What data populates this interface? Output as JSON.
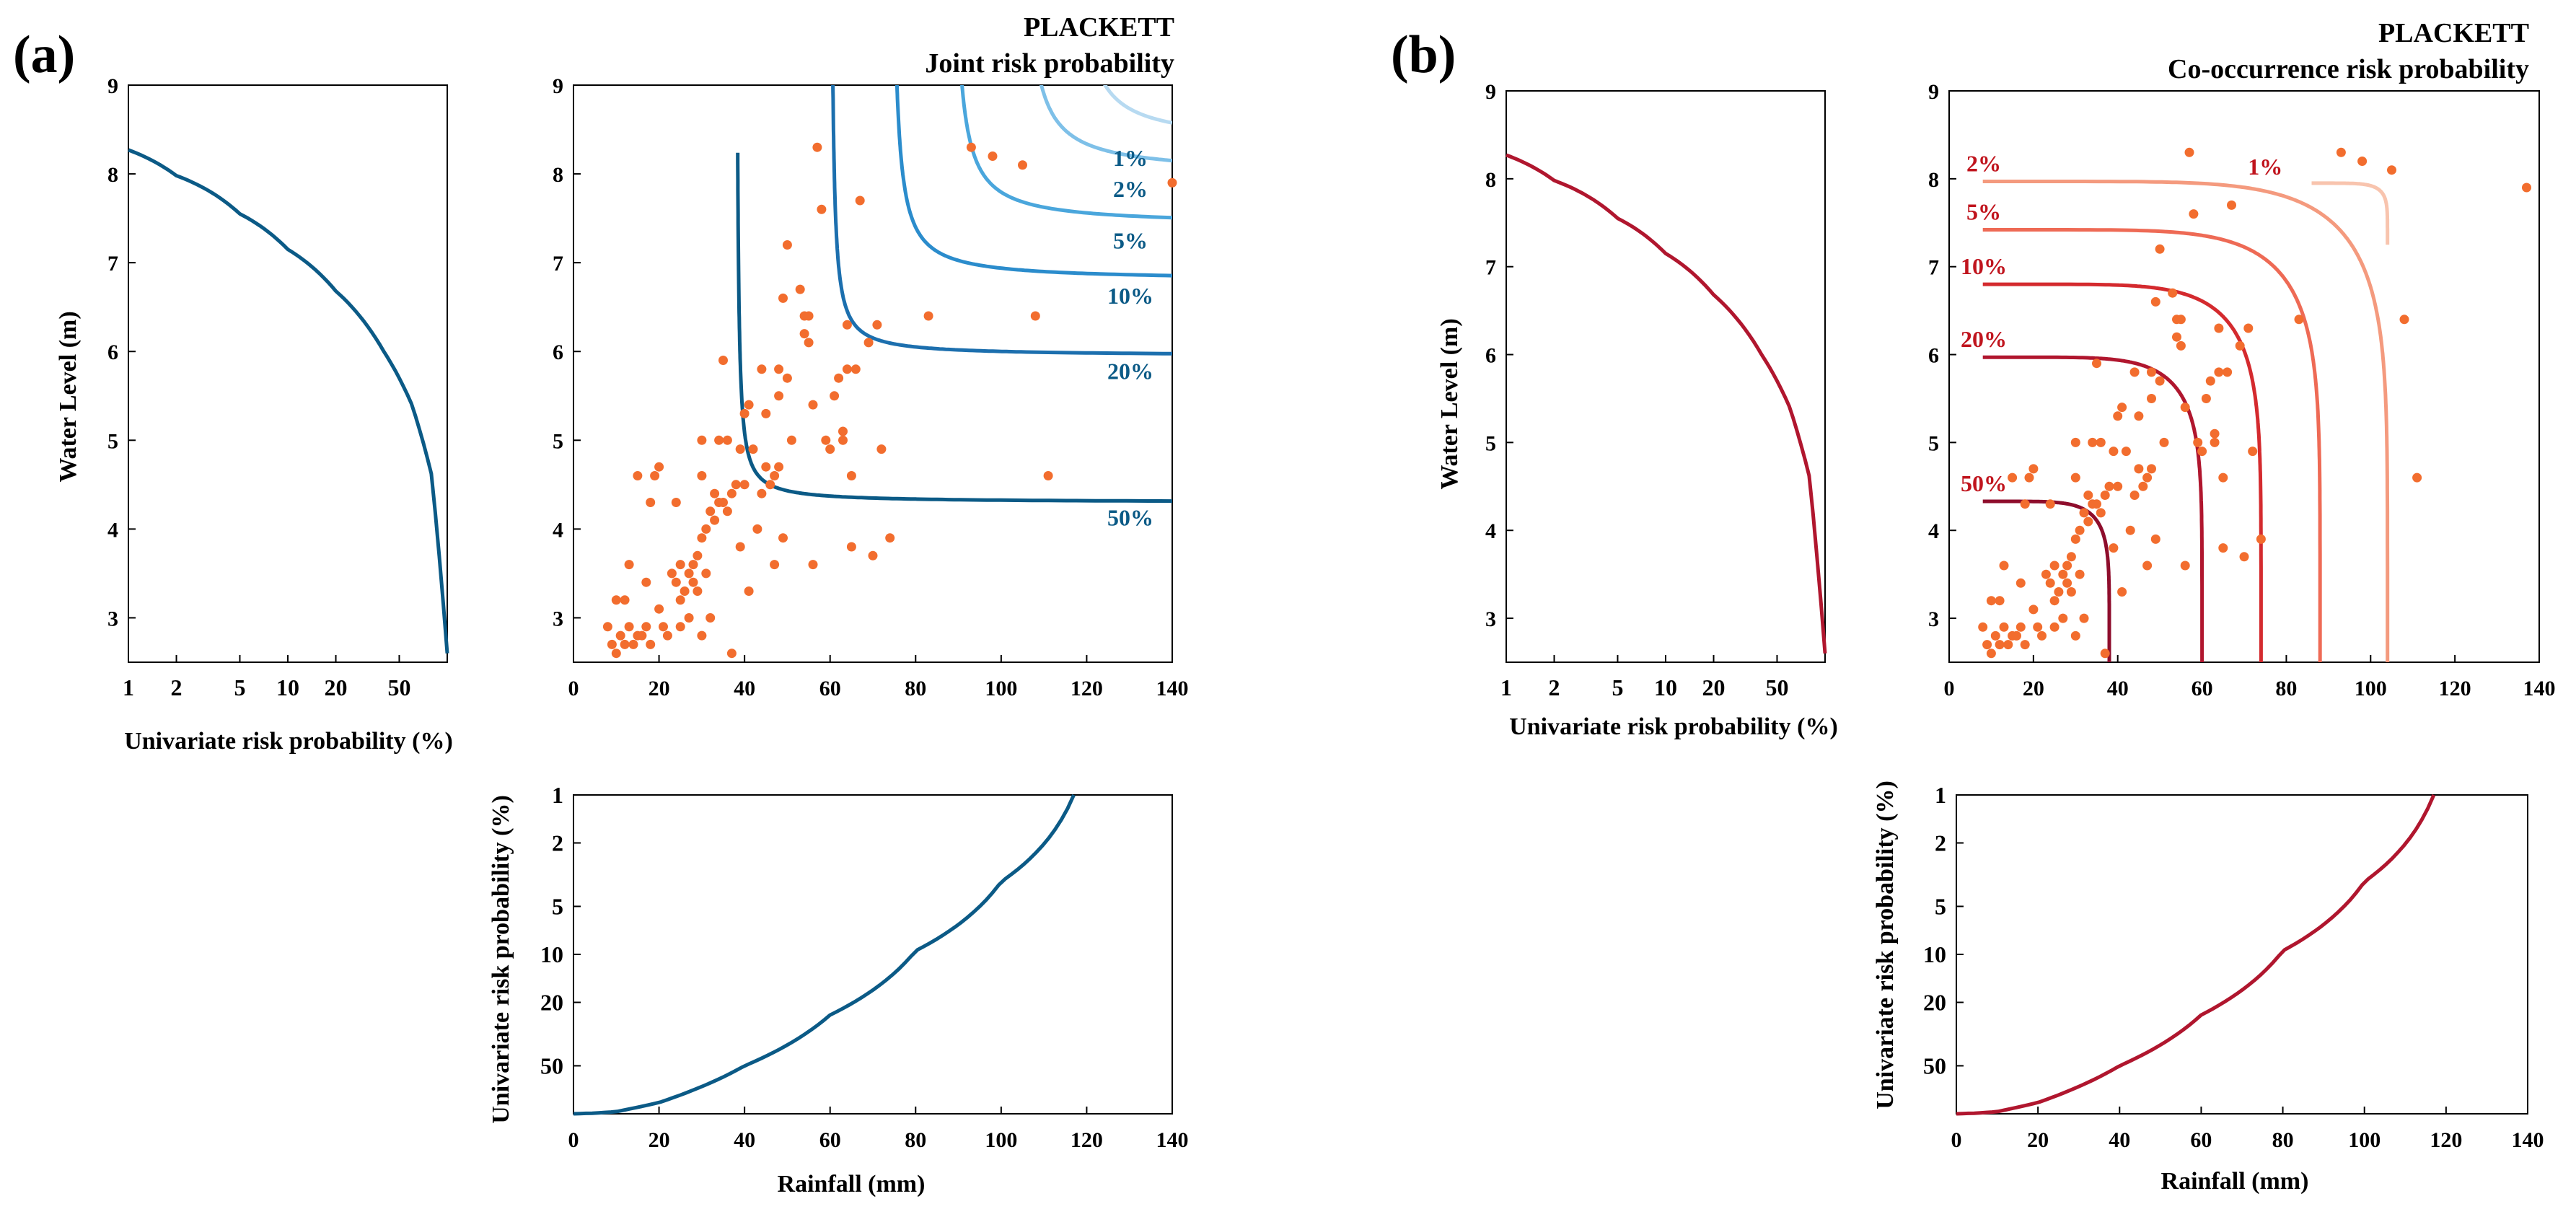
{
  "figure": {
    "panels": [
      {
        "label": "(a)",
        "copula": "PLACKETT",
        "main_title": "Joint risk probability",
        "contour_type": "joint",
        "curve_color": "#0b5a86",
        "contour_colors": [
          "#0b5a86",
          "#1c6fae",
          "#2b8ccc",
          "#4aa6dc",
          "#7ec0e8",
          "#b7daf1"
        ],
        "contour_label_color": "#0b5a86",
        "water_ylabel": "Water Level (m)",
        "prob_xlabel": "Univariate risk probability  (%)",
        "prob_ylabel": "Univariate risk probability (%)",
        "rain_xlabel": "Rainfall (mm)"
      },
      {
        "label": "(b)",
        "copula": "PLACKETT",
        "main_title": "Co-occurrence risk probability",
        "contour_type": "cooccurrence",
        "curve_color": "#b0162e",
        "contour_colors": [
          "#8e0d2c",
          "#b0162e",
          "#d42a2e",
          "#ee6a55",
          "#f49a7e",
          "#f8c4ae"
        ],
        "contour_label_color": "#c0141d",
        "water_ylabel": "Water Level (m)",
        "prob_xlabel": "Univariate risk probability (%)",
        "prob_ylabel": "Univariate risk probability (%)",
        "rain_xlabel": "Rainfall (mm)"
      }
    ]
  },
  "chart_data": [
    {
      "panel": "(a)",
      "type": "line",
      "name": "water-level-marginal",
      "xlabel": "Univariate risk probability  (%)",
      "ylabel": "Water Level (m)",
      "x_scale": "log-reversed",
      "x_ticks": [
        "1",
        "2",
        "5",
        "10",
        "20",
        "50"
      ],
      "y_ticks": [
        3,
        4,
        5,
        6,
        7,
        8,
        9
      ],
      "ylim": [
        2.5,
        9
      ],
      "x": [
        1,
        2,
        5,
        10,
        20,
        40,
        60,
        80,
        100
      ],
      "y": [
        8.27,
        7.98,
        7.55,
        7.15,
        6.68,
        6.0,
        5.4,
        4.6,
        2.6
      ]
    },
    {
      "panel": "(a)",
      "type": "scatter+contour",
      "name": "joint-risk",
      "title": "Joint risk probability",
      "xlim": [
        0,
        140
      ],
      "ylim": [
        2.5,
        9
      ],
      "x_ticks": [
        0,
        20,
        40,
        60,
        80,
        100,
        120,
        140
      ],
      "y_ticks": [
        3,
        4,
        5,
        6,
        7,
        8,
        9
      ],
      "scatter_color": "#f26d2e",
      "points": [
        [
          8,
          2.9
        ],
        [
          9,
          2.7
        ],
        [
          10,
          3.2
        ],
        [
          10,
          2.6
        ],
        [
          11,
          2.8
        ],
        [
          12,
          3.2
        ],
        [
          12,
          2.7
        ],
        [
          13,
          3.6
        ],
        [
          13,
          2.9
        ],
        [
          14,
          2.7
        ],
        [
          15,
          2.8
        ],
        [
          15,
          4.6
        ],
        [
          16,
          2.8
        ],
        [
          17,
          2.9
        ],
        [
          17,
          3.4
        ],
        [
          18,
          4.3
        ],
        [
          18,
          2.7
        ],
        [
          19,
          4.6
        ],
        [
          20,
          4.7
        ],
        [
          20,
          3.1
        ],
        [
          21,
          2.9
        ],
        [
          22,
          2.8
        ],
        [
          23,
          3.5
        ],
        [
          24,
          4.3
        ],
        [
          24,
          3.4
        ],
        [
          25,
          3.6
        ],
        [
          25,
          3.2
        ],
        [
          25,
          2.9
        ],
        [
          26,
          3.3
        ],
        [
          27,
          3.5
        ],
        [
          27,
          3.0
        ],
        [
          28,
          3.6
        ],
        [
          28,
          3.4
        ],
        [
          29,
          3.7
        ],
        [
          29,
          3.3
        ],
        [
          30,
          3.9
        ],
        [
          30,
          2.8
        ],
        [
          30,
          5.0
        ],
        [
          30,
          4.6
        ],
        [
          31,
          4.0
        ],
        [
          31,
          3.5
        ],
        [
          32,
          4.2
        ],
        [
          32,
          3.0
        ],
        [
          33,
          4.4
        ],
        [
          33,
          4.1
        ],
        [
          34,
          5.0
        ],
        [
          34,
          4.3
        ],
        [
          35,
          5.9
        ],
        [
          35,
          4.3
        ],
        [
          36,
          5.0
        ],
        [
          36,
          4.2
        ],
        [
          37,
          4.4
        ],
        [
          37,
          2.6
        ],
        [
          38,
          4.5
        ],
        [
          39,
          3.8
        ],
        [
          39,
          4.9
        ],
        [
          40,
          5.3
        ],
        [
          40,
          4.5
        ],
        [
          41,
          3.3
        ],
        [
          41,
          5.4
        ],
        [
          42,
          4.9
        ],
        [
          43,
          4.0
        ],
        [
          44,
          4.4
        ],
        [
          44,
          5.8
        ],
        [
          45,
          4.7
        ],
        [
          45,
          5.3
        ],
        [
          46,
          4.5
        ],
        [
          47,
          4.6
        ],
        [
          47,
          3.6
        ],
        [
          48,
          5.8
        ],
        [
          48,
          5.5
        ],
        [
          48,
          4.7
        ],
        [
          49,
          6.6
        ],
        [
          49,
          3.9
        ],
        [
          50,
          7.2
        ],
        [
          50,
          5.7
        ],
        [
          51,
          5.0
        ],
        [
          53,
          6.7
        ],
        [
          54,
          6.2
        ],
        [
          54,
          6.4
        ],
        [
          55,
          6.4
        ],
        [
          55,
          6.1
        ],
        [
          56,
          3.6
        ],
        [
          56,
          5.4
        ],
        [
          57,
          8.3
        ],
        [
          58,
          7.6
        ],
        [
          59,
          5.0
        ],
        [
          60,
          4.9
        ],
        [
          61,
          5.5
        ],
        [
          62,
          5.7
        ],
        [
          63,
          5.1
        ],
        [
          63,
          5.0
        ],
        [
          64,
          5.8
        ],
        [
          64,
          6.3
        ],
        [
          65,
          4.6
        ],
        [
          65,
          3.8
        ],
        [
          66,
          5.8
        ],
        [
          67,
          7.7
        ],
        [
          69,
          6.1
        ],
        [
          70,
          3.7
        ],
        [
          71,
          6.3
        ],
        [
          72,
          4.9
        ],
        [
          74,
          3.9
        ],
        [
          83,
          6.4
        ],
        [
          93,
          8.3
        ],
        [
          98,
          8.2
        ],
        [
          105,
          8.1
        ],
        [
          108,
          6.4
        ],
        [
          111,
          4.6
        ],
        [
          140,
          7.9
        ]
      ],
      "contour_labels": [
        "1%",
        "2%",
        "5%",
        "10%",
        "20%",
        "50%"
      ],
      "contours": [
        {
          "label": "50%",
          "x_asym": 38,
          "y_asym": 4.3,
          "k": 3.5
        },
        {
          "label": "20%",
          "x_asym": 60,
          "y_asym": 5.95,
          "k": 4.5
        },
        {
          "label": "10%",
          "x_asym": 74,
          "y_asym": 6.8,
          "k": 8.0
        },
        {
          "label": "5%",
          "x_asym": 88,
          "y_asym": 7.42,
          "k": 10.0
        },
        {
          "label": "2%",
          "x_asym": 104,
          "y_asym": 8.0,
          "k": 12.0
        },
        {
          "label": "1%",
          "x_asym": 116,
          "y_asym": 8.35,
          "k": 12.0
        }
      ]
    },
    {
      "panel": "(a)",
      "type": "line",
      "name": "rainfall-marginal",
      "xlabel": "Rainfall (mm)",
      "ylabel": "Univariate risk probability (%)",
      "y_scale": "log",
      "y_ticks": [
        "1",
        "2",
        "5",
        "10",
        "20",
        "50"
      ],
      "x_ticks": [
        0,
        20,
        40,
        60,
        80,
        100,
        120,
        140
      ],
      "xlim": [
        0,
        140
      ],
      "x": [
        0,
        5,
        10,
        20,
        40,
        60,
        80,
        100,
        117
      ],
      "y": [
        100,
        99,
        97,
        85,
        50,
        24,
        9.5,
        3.5,
        1
      ]
    },
    {
      "panel": "(b)",
      "type": "line",
      "name": "water-level-marginal",
      "xlabel": "Univariate risk probability (%)",
      "ylabel": "Water Level (m)",
      "x_scale": "log-reversed",
      "x_ticks": [
        "1",
        "2",
        "5",
        "10",
        "20",
        "50"
      ],
      "y_ticks": [
        3,
        4,
        5,
        6,
        7,
        8,
        9
      ],
      "ylim": [
        2.5,
        9
      ],
      "x": [
        1,
        2,
        5,
        10,
        20,
        40,
        60,
        80,
        100
      ],
      "y": [
        8.27,
        7.98,
        7.55,
        7.15,
        6.68,
        6.0,
        5.4,
        4.6,
        2.6
      ]
    },
    {
      "panel": "(b)",
      "type": "scatter+contour",
      "name": "cooccurrence-risk",
      "title": "Co-occurrence risk probability",
      "xlim": [
        0,
        140
      ],
      "ylim": [
        2.5,
        9
      ],
      "x_ticks": [
        0,
        20,
        40,
        60,
        80,
        100,
        120,
        140
      ],
      "y_ticks": [
        3,
        4,
        5,
        6,
        7,
        8,
        9
      ],
      "scatter_color": "#f26d2e",
      "points": [
        [
          8,
          2.9
        ],
        [
          9,
          2.7
        ],
        [
          10,
          3.2
        ],
        [
          10,
          2.6
        ],
        [
          11,
          2.8
        ],
        [
          12,
          3.2
        ],
        [
          12,
          2.7
        ],
        [
          13,
          3.6
        ],
        [
          13,
          2.9
        ],
        [
          14,
          2.7
        ],
        [
          15,
          2.8
        ],
        [
          15,
          4.6
        ],
        [
          16,
          2.8
        ],
        [
          17,
          2.9
        ],
        [
          17,
          3.4
        ],
        [
          18,
          4.3
        ],
        [
          18,
          2.7
        ],
        [
          19,
          4.6
        ],
        [
          20,
          4.7
        ],
        [
          20,
          3.1
        ],
        [
          21,
          2.9
        ],
        [
          22,
          2.8
        ],
        [
          23,
          3.5
        ],
        [
          24,
          4.3
        ],
        [
          24,
          3.4
        ],
        [
          25,
          3.6
        ],
        [
          25,
          3.2
        ],
        [
          25,
          2.9
        ],
        [
          26,
          3.3
        ],
        [
          27,
          3.5
        ],
        [
          27,
          3.0
        ],
        [
          28,
          3.6
        ],
        [
          28,
          3.4
        ],
        [
          29,
          3.7
        ],
        [
          29,
          3.3
        ],
        [
          30,
          3.9
        ],
        [
          30,
          2.8
        ],
        [
          30,
          5.0
        ],
        [
          30,
          4.6
        ],
        [
          31,
          4.0
        ],
        [
          31,
          3.5
        ],
        [
          32,
          4.2
        ],
        [
          32,
          3.0
        ],
        [
          33,
          4.4
        ],
        [
          33,
          4.1
        ],
        [
          34,
          5.0
        ],
        [
          34,
          4.3
        ],
        [
          35,
          5.9
        ],
        [
          35,
          4.3
        ],
        [
          36,
          5.0
        ],
        [
          36,
          4.2
        ],
        [
          37,
          4.4
        ],
        [
          37,
          2.6
        ],
        [
          38,
          4.5
        ],
        [
          39,
          3.8
        ],
        [
          39,
          4.9
        ],
        [
          40,
          5.3
        ],
        [
          40,
          4.5
        ],
        [
          41,
          3.3
        ],
        [
          41,
          5.4
        ],
        [
          42,
          4.9
        ],
        [
          43,
          4.0
        ],
        [
          44,
          4.4
        ],
        [
          44,
          5.8
        ],
        [
          45,
          4.7
        ],
        [
          45,
          5.3
        ],
        [
          46,
          4.5
        ],
        [
          47,
          4.6
        ],
        [
          47,
          3.6
        ],
        [
          48,
          5.8
        ],
        [
          48,
          5.5
        ],
        [
          48,
          4.7
        ],
        [
          49,
          6.6
        ],
        [
          49,
          3.9
        ],
        [
          50,
          7.2
        ],
        [
          50,
          5.7
        ],
        [
          51,
          5.0
        ],
        [
          53,
          6.7
        ],
        [
          54,
          6.2
        ],
        [
          54,
          6.4
        ],
        [
          55,
          6.4
        ],
        [
          55,
          6.1
        ],
        [
          56,
          3.6
        ],
        [
          56,
          5.4
        ],
        [
          57,
          8.3
        ],
        [
          58,
          7.6
        ],
        [
          59,
          5.0
        ],
        [
          60,
          4.9
        ],
        [
          61,
          5.5
        ],
        [
          62,
          5.7
        ],
        [
          63,
          5.1
        ],
        [
          63,
          5.0
        ],
        [
          64,
          5.8
        ],
        [
          64,
          6.3
        ],
        [
          65,
          4.6
        ],
        [
          65,
          3.8
        ],
        [
          66,
          5.8
        ],
        [
          67,
          7.7
        ],
        [
          69,
          6.1
        ],
        [
          70,
          3.7
        ],
        [
          71,
          6.3
        ],
        [
          72,
          4.9
        ],
        [
          74,
          3.9
        ],
        [
          83,
          6.4
        ],
        [
          93,
          8.3
        ],
        [
          98,
          8.2
        ],
        [
          105,
          8.1
        ],
        [
          108,
          6.4
        ],
        [
          111,
          4.6
        ],
        [
          137,
          7.9
        ]
      ],
      "contour_labels": [
        "1%",
        "2%",
        "5%",
        "10%",
        "20%",
        "50%"
      ],
      "contours": [
        {
          "label": "50%",
          "x_end": 38,
          "y_top": 4.33,
          "x0": 8,
          "y0": 2.5
        },
        {
          "label": "20%",
          "x_end": 60,
          "y_top": 5.97,
          "x0": 8,
          "y0": 2.5
        },
        {
          "label": "10%",
          "x_end": 74,
          "y_top": 6.8,
          "x0": 8,
          "y0": 2.5
        },
        {
          "label": "5%",
          "x_end": 88,
          "y_top": 7.42,
          "x0": 8,
          "y0": 2.5
        },
        {
          "label": "2%",
          "x_end": 104,
          "y_top": 7.97,
          "x0": 8,
          "y0": 2.5
        },
        {
          "label": "1%",
          "x_end": 104,
          "y_top": 7.95,
          "x0": 86,
          "y0": 7.25
        }
      ]
    },
    {
      "panel": "(b)",
      "type": "line",
      "name": "rainfall-marginal",
      "xlabel": "Rainfall (mm)",
      "ylabel": "Univariate risk probability (%)",
      "y_scale": "log",
      "y_ticks": [
        "1",
        "2",
        "5",
        "10",
        "20",
        "50"
      ],
      "x_ticks": [
        0,
        20,
        40,
        60,
        80,
        100,
        120,
        140
      ],
      "xlim": [
        0,
        140
      ],
      "x": [
        0,
        5,
        10,
        20,
        40,
        60,
        80,
        100,
        117
      ],
      "y": [
        100,
        99,
        97,
        85,
        50,
        24,
        9.5,
        3.5,
        1
      ]
    }
  ]
}
